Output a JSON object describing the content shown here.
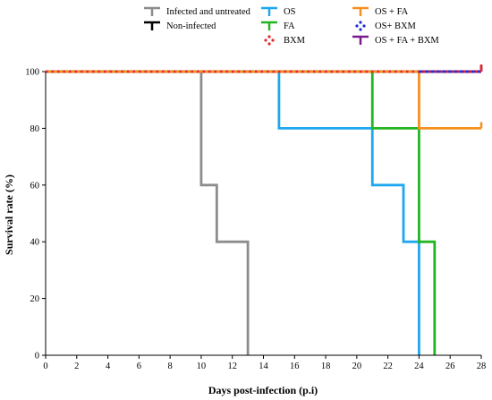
{
  "chart_data": {
    "type": "line",
    "step": true,
    "xlabel": "Days post-infection (p.i)",
    "ylabel": "Survival rate (%)",
    "xlim": [
      0,
      28
    ],
    "ylim": [
      0,
      100
    ],
    "xticks": [
      0,
      2,
      4,
      6,
      8,
      10,
      12,
      14,
      16,
      18,
      20,
      22,
      24,
      26,
      28
    ],
    "yticks": [
      0,
      20,
      40,
      60,
      80,
      100
    ],
    "grid": false,
    "legend_position": "top",
    "series": [
      {
        "name": "Infected and untreated",
        "color": "#8c8c8c",
        "style": "solid",
        "x": [
          0,
          10,
          11,
          13
        ],
        "y": [
          100,
          60,
          40,
          0
        ]
      },
      {
        "name": "Non-infected",
        "color": "#000000",
        "style": "solid",
        "x": [
          0,
          28
        ],
        "y": [
          100,
          100
        ]
      },
      {
        "name": "OS",
        "color": "#1ea7f0",
        "style": "solid",
        "x": [
          0,
          15,
          21,
          23,
          24
        ],
        "y": [
          100,
          80,
          60,
          40,
          0
        ]
      },
      {
        "name": "FA",
        "color": "#22b522",
        "style": "solid",
        "x": [
          0,
          21,
          24,
          25
        ],
        "y": [
          100,
          80,
          40,
          0
        ]
      },
      {
        "name": "BXM",
        "color": "#e8262a",
        "style": "dotted",
        "x": [
          0,
          28
        ],
        "y": [
          100,
          100
        ]
      },
      {
        "name": "OS + FA",
        "color": "#f5901e",
        "style": "solid",
        "x": [
          0,
          24,
          28
        ],
        "y": [
          100,
          80,
          80
        ]
      },
      {
        "name": "OS+ BXM",
        "color": "#1b2fd6",
        "style": "dotted",
        "x": [
          24,
          28
        ],
        "y": [
          100,
          100
        ]
      },
      {
        "name": "OS + FA + BXM",
        "color": "#7b1a8c",
        "style": "solid",
        "x": [
          24,
          28
        ],
        "y": [
          100,
          100
        ]
      }
    ]
  }
}
